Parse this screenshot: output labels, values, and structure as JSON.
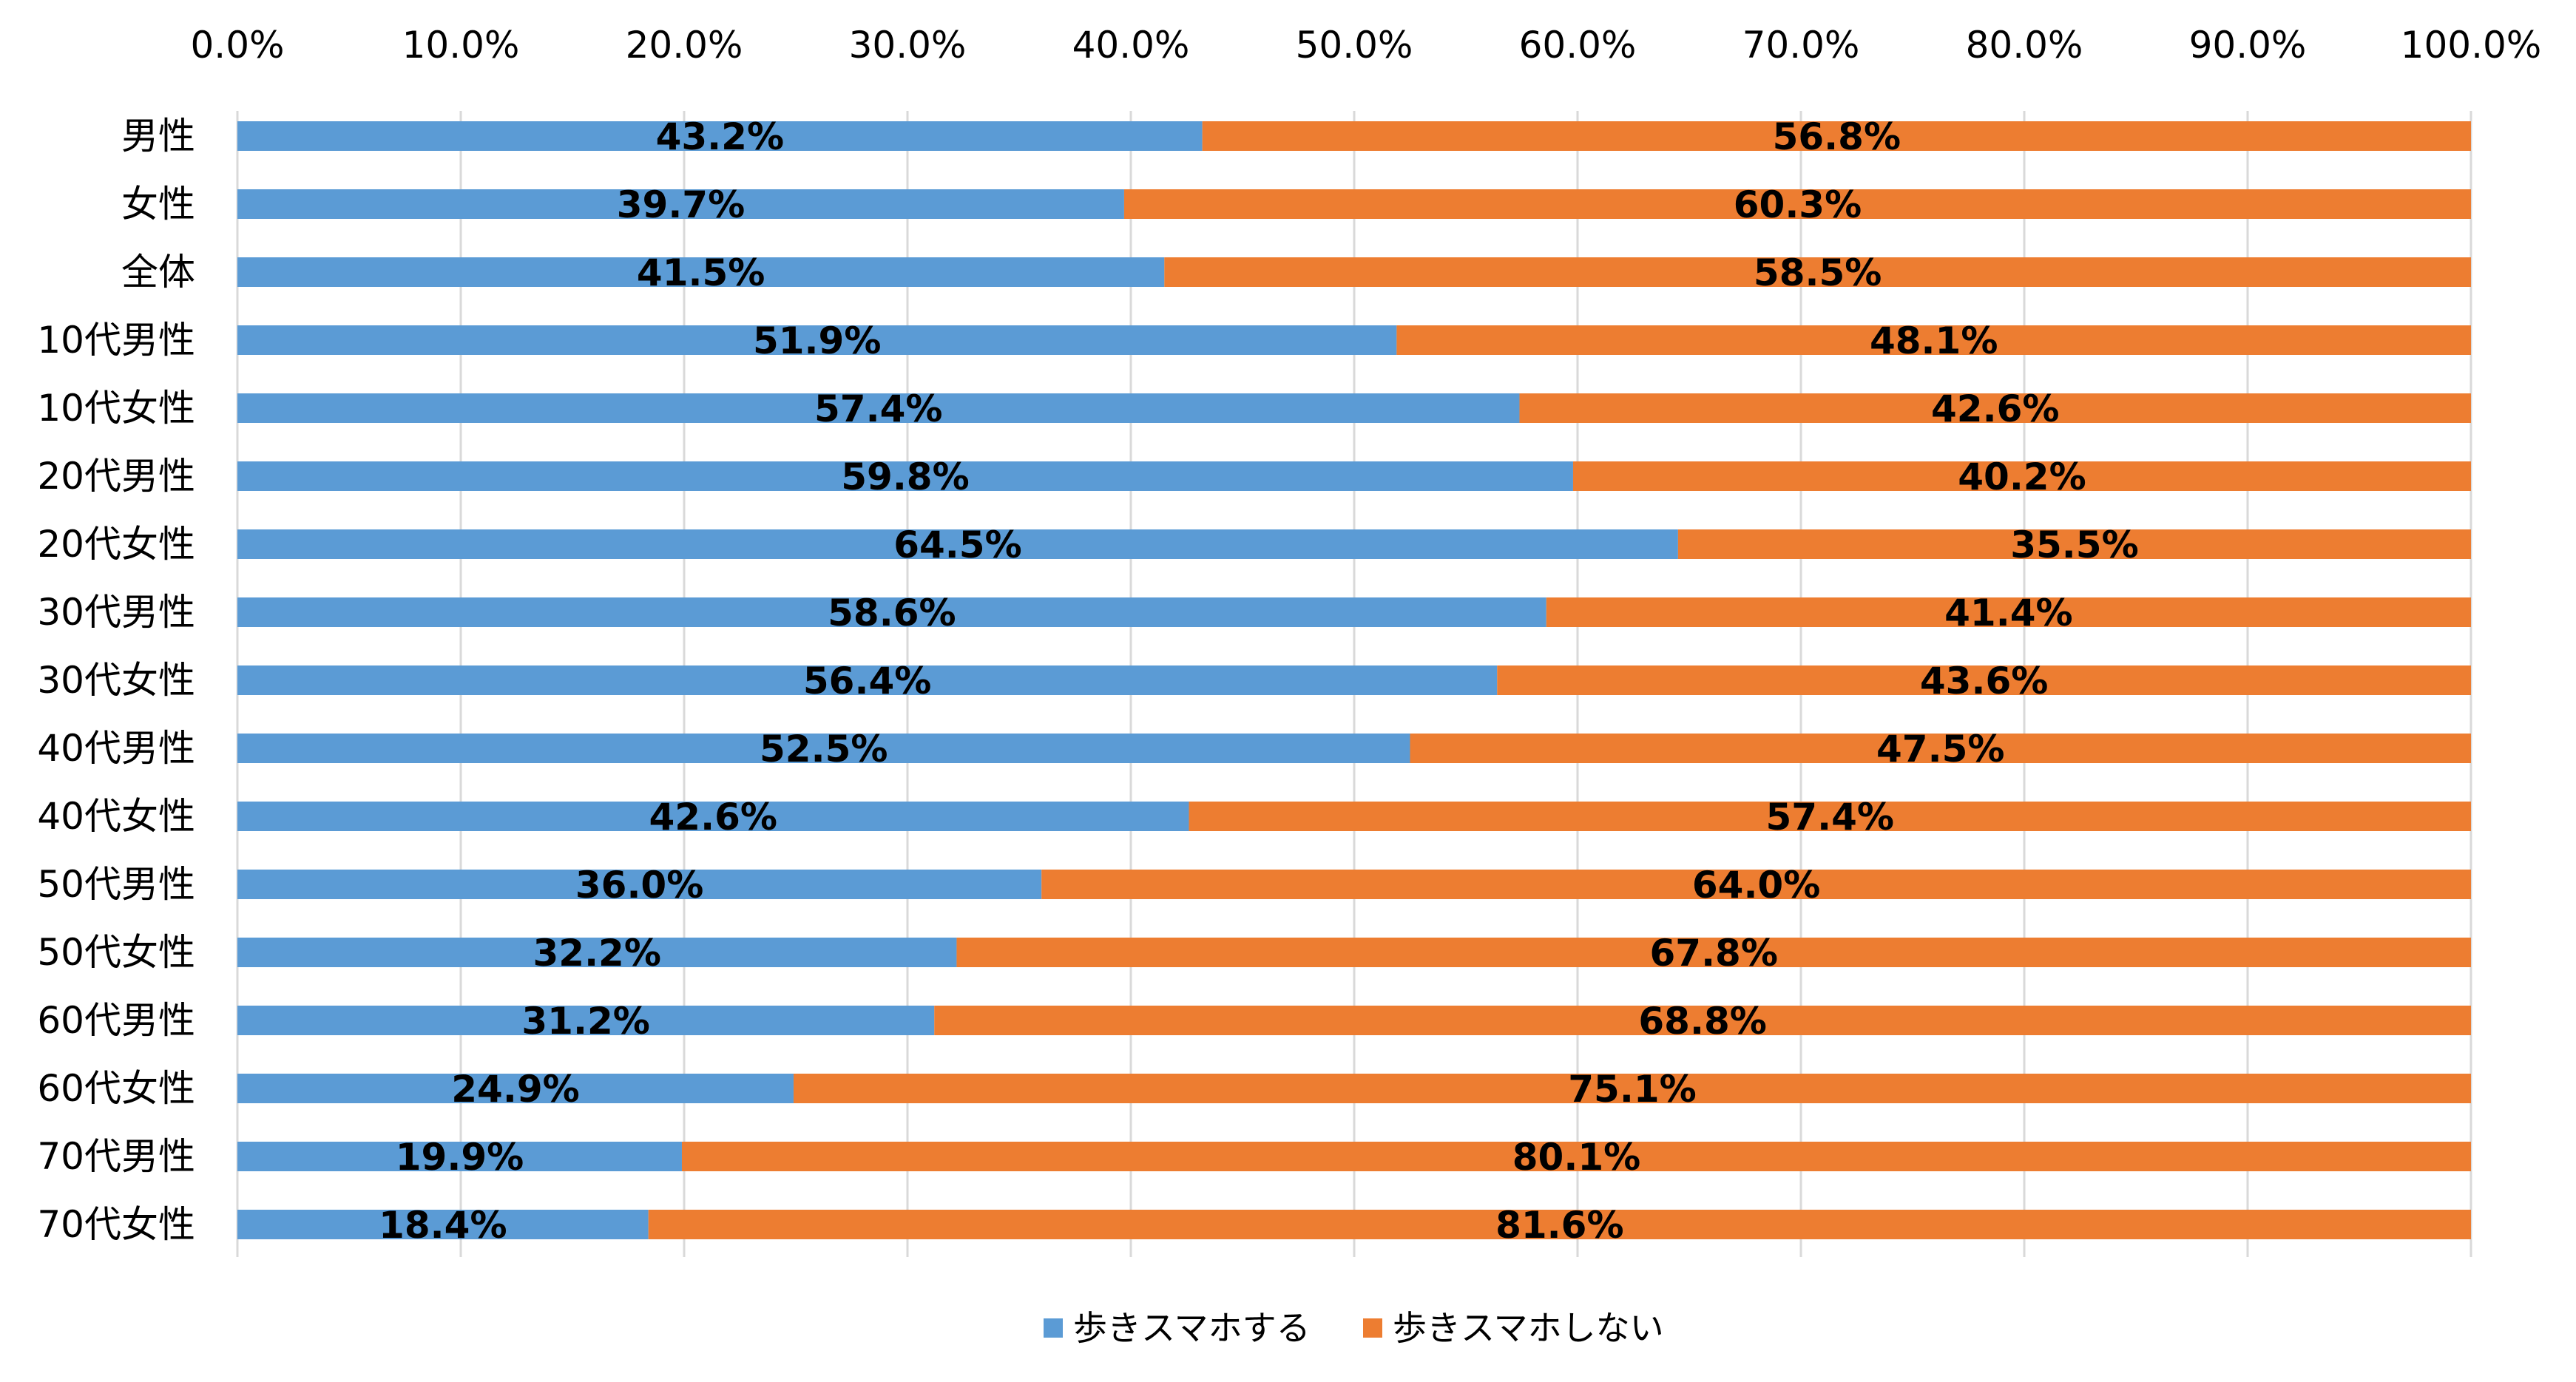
{
  "chart_data": {
    "type": "bar",
    "orientation": "horizontal",
    "stacked": true,
    "percent_stacked": true,
    "xlim": [
      0,
      100
    ],
    "x_ticks": [
      "0.0%",
      "10.0%",
      "20.0%",
      "30.0%",
      "40.0%",
      "50.0%",
      "60.0%",
      "70.0%",
      "80.0%",
      "90.0%",
      "100.0%"
    ],
    "axis_position": "top",
    "grid": true,
    "legend_position": "bottom",
    "categories": [
      "男性",
      "女性",
      "全体",
      "10代男性",
      "10代女性",
      "20代男性",
      "20代女性",
      "30代男性",
      "30代女性",
      "40代男性",
      "40代女性",
      "50代男性",
      "50代女性",
      "60代男性",
      "60代女性",
      "70代男性",
      "70代女性"
    ],
    "series": [
      {
        "name": "歩きスマホする",
        "color": "#5b9bd5",
        "values": [
          43.2,
          39.7,
          41.5,
          51.9,
          57.4,
          59.8,
          64.5,
          58.6,
          56.4,
          52.5,
          42.6,
          36.0,
          32.2,
          31.2,
          24.9,
          19.9,
          18.4
        ],
        "labels": [
          "43.2%",
          "39.7%",
          "41.5%",
          "51.9%",
          "57.4%",
          "59.8%",
          "64.5%",
          "58.6%",
          "56.4%",
          "52.5%",
          "42.6%",
          "36.0%",
          "32.2%",
          "31.2%",
          "24.9%",
          "19.9%",
          "18.4%"
        ]
      },
      {
        "name": "歩きスマホしない",
        "color": "#ed7d31",
        "values": [
          56.8,
          60.3,
          58.5,
          48.1,
          42.6,
          40.2,
          35.5,
          41.4,
          43.6,
          47.5,
          57.4,
          64.0,
          67.8,
          68.8,
          75.1,
          80.1,
          81.6
        ],
        "labels": [
          "56.8%",
          "60.3%",
          "58.5%",
          "48.1%",
          "42.6%",
          "40.2%",
          "35.5%",
          "41.4%",
          "43.6%",
          "47.5%",
          "57.4%",
          "64.0%",
          "67.8%",
          "68.8%",
          "75.1%",
          "80.1%",
          "81.6%"
        ]
      }
    ]
  }
}
